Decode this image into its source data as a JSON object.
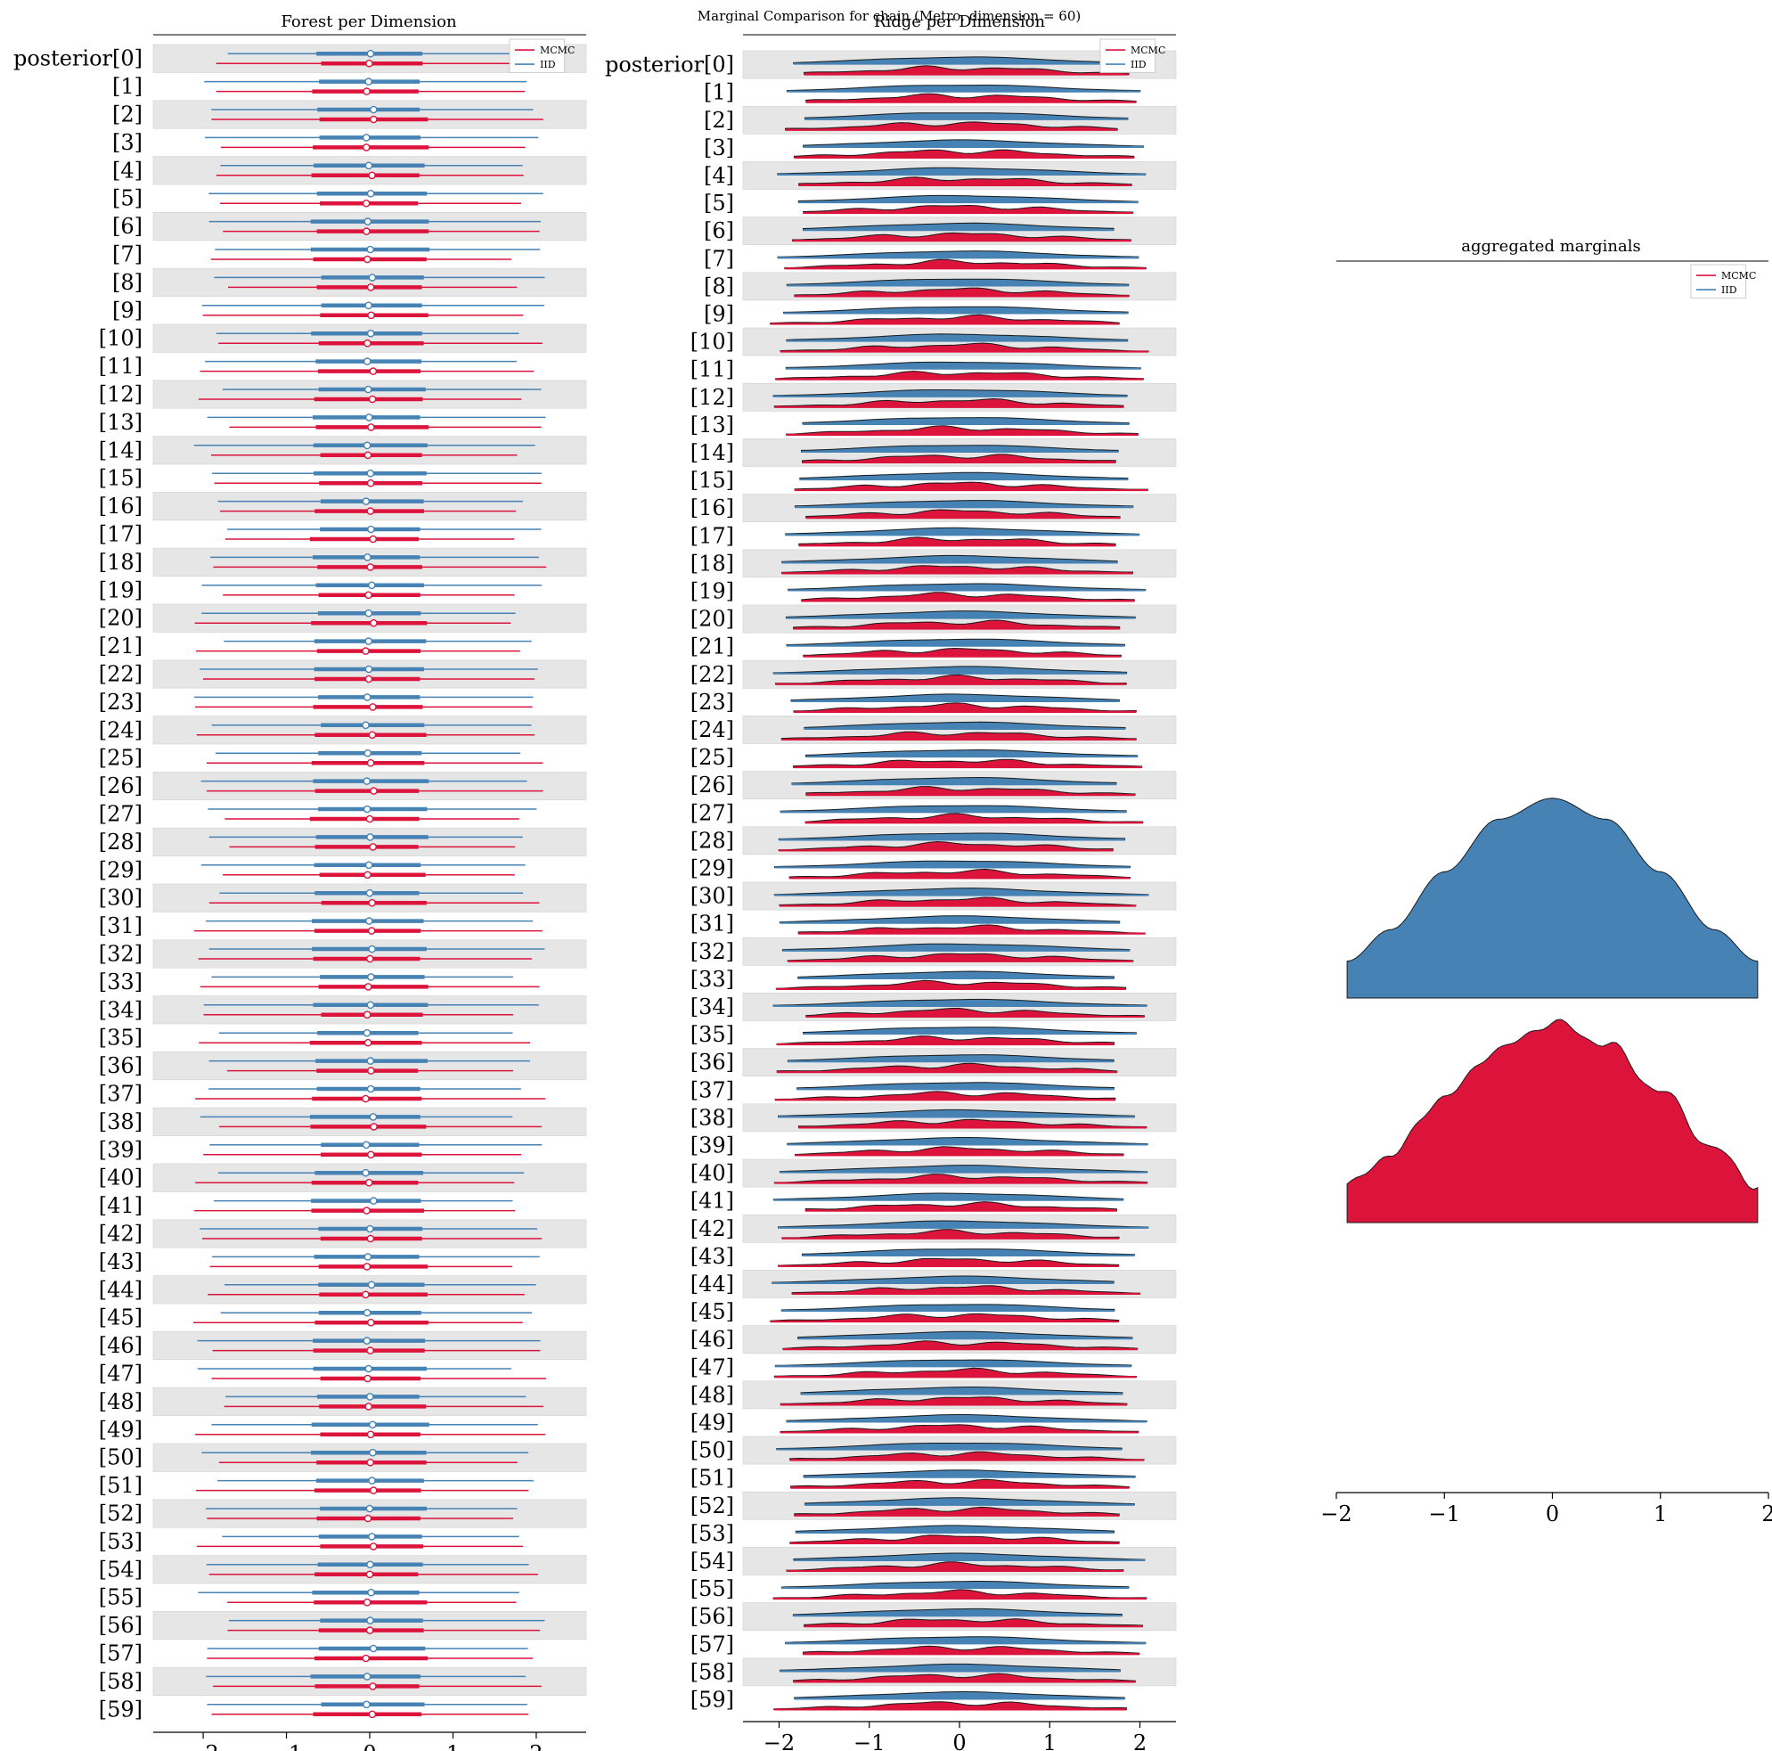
{
  "figure": {
    "suptitle": "Marginal Comparison for chain (Metro, dimension = 60)"
  },
  "legend": {
    "entries": [
      {
        "label": "MCMC",
        "color": "#DC143C"
      },
      {
        "label": "IID",
        "color": "#4682B4"
      }
    ]
  },
  "chart_data": [
    {
      "type": "forest",
      "title": "Forest per Dimension",
      "xlim": [
        -2.6,
        2.6
      ],
      "xticks": [
        "−2",
        "−1",
        "0",
        "1",
        "2"
      ],
      "xtick_values": [
        -2,
        -1,
        0,
        1,
        2
      ],
      "first_label": "posterior[0]",
      "n_dimensions": 60,
      "legend_placement": "top-right",
      "alternating_row_shading": true,
      "series": [
        {
          "name": "MCMC",
          "color": "#DC143C",
          "median": 0.0,
          "iqr": [
            -0.65,
            0.65
          ],
          "hdi_94": [
            -1.9,
            1.9
          ]
        },
        {
          "name": "IID",
          "color": "#4682B4",
          "median": 0.0,
          "iqr": [
            -0.65,
            0.65
          ],
          "hdi_94": [
            -1.9,
            1.9
          ]
        }
      ]
    },
    {
      "type": "ridge",
      "title": "Ridge per Dimension",
      "xlim": [
        -2.4,
        2.4
      ],
      "xticks": [
        "−2",
        "−1",
        "0",
        "1",
        "2"
      ],
      "xtick_values": [
        -2,
        -1,
        0,
        1,
        2
      ],
      "first_label": "posterior[0]",
      "n_dimensions": 60,
      "legend_placement": "top-right",
      "alternating_row_shading": true,
      "series": [
        {
          "name": "MCMC",
          "color": "#DC143C",
          "range": [
            -1.9,
            1.9
          ]
        },
        {
          "name": "IID",
          "color": "#4682B4",
          "range": [
            -1.9,
            1.9
          ]
        }
      ]
    },
    {
      "type": "area",
      "title": "aggregated marginals",
      "xlim": [
        -2.0,
        2.0
      ],
      "xticks": [
        "−2",
        "−1",
        "0",
        "1",
        "2"
      ],
      "xtick_values": [
        -2,
        -1,
        0,
        1,
        2
      ],
      "legend_placement": "top-right",
      "series": [
        {
          "name": "IID",
          "color": "#4682B4",
          "x": [
            -1.9,
            -1.5,
            -1.0,
            -0.5,
            0.0,
            0.5,
            1.0,
            1.5,
            1.9
          ],
          "density": [
            0.07,
            0.13,
            0.24,
            0.34,
            0.38,
            0.34,
            0.24,
            0.13,
            0.07
          ]
        },
        {
          "name": "MCMC",
          "color": "#DC143C",
          "x": [
            -1.9,
            -1.5,
            -1.0,
            -0.5,
            0.0,
            0.5,
            1.0,
            1.5,
            1.9
          ],
          "density": [
            0.07,
            0.13,
            0.24,
            0.33,
            0.38,
            0.34,
            0.25,
            0.14,
            0.07
          ]
        }
      ]
    }
  ]
}
